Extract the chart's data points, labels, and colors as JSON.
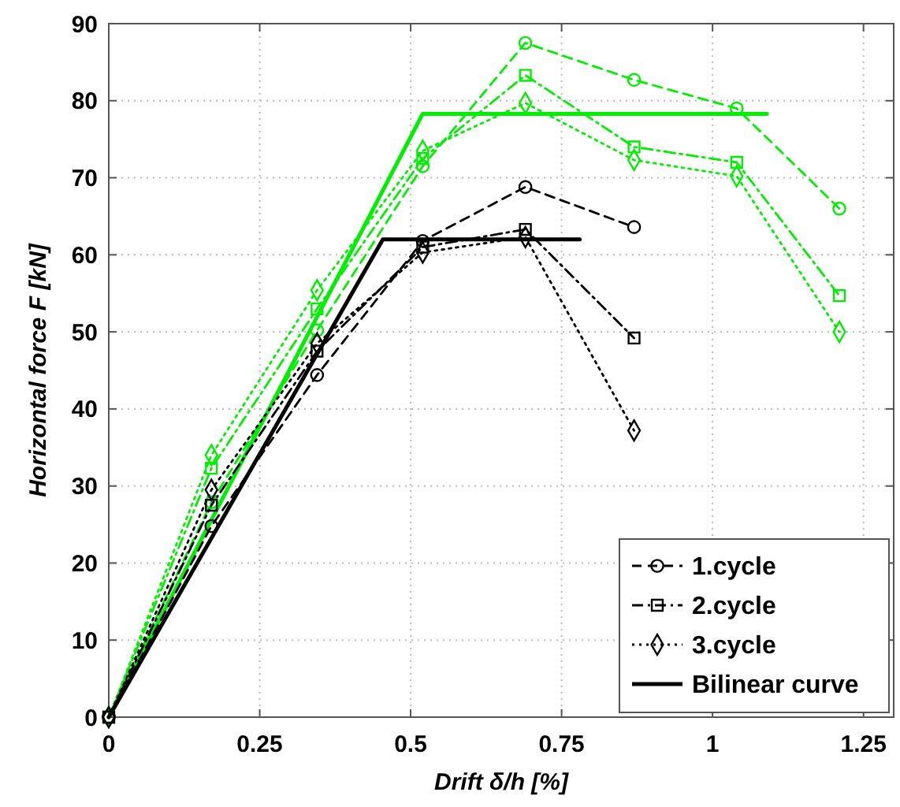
{
  "chart_data": {
    "type": "line",
    "xlabel": "Drift  δ/h [%]",
    "ylabel": "Horizontal force  F [kN]",
    "xlim": [
      0,
      1.3
    ],
    "xticks": [
      0,
      0.25,
      0.5,
      0.75,
      1,
      1.25
    ],
    "ylim": [
      0,
      90
    ],
    "yticks": [
      0,
      10,
      20,
      30,
      40,
      50,
      60,
      70,
      80,
      90
    ],
    "grid": true,
    "legend": "bottom right",
    "series": [
      {
        "color": "#00ee00",
        "marker": "circle",
        "line_style": "dashed",
        "x": [
          0,
          0.17,
          0.345,
          0.52,
          0.69,
          0.87,
          1.04,
          1.21
        ],
        "values": [
          0,
          27.9,
          50.2,
          71.5,
          87.5,
          82.7,
          79,
          66
        ]
      },
      {
        "color": "#00ee00",
        "marker": "square",
        "line_style": "dashdot",
        "x": [
          0,
          0.17,
          0.345,
          0.52,
          0.69,
          0.87,
          1.04,
          1.21
        ],
        "values": [
          0,
          32.3,
          53,
          72.5,
          83.3,
          74,
          72,
          54.7
        ]
      },
      {
        "color": "#00ee00",
        "marker": "diamond",
        "line_style": "dotted",
        "x": [
          0,
          0.17,
          0.345,
          0.52,
          0.69,
          0.87,
          1.04,
          1.21
        ],
        "values": [
          0,
          34,
          55.4,
          73.5,
          79.7,
          72.3,
          70.2,
          50
        ]
      },
      {
        "color": "#00ee00",
        "marker": "none",
        "line_style": "solid",
        "x": [
          0,
          0.52,
          1.09
        ],
        "values": [
          0,
          78.3,
          78.3
        ]
      },
      {
        "name": "1.cycle",
        "color": "#000000",
        "marker": "circle",
        "line_style": "dashed",
        "x": [
          0,
          0.17,
          0.345,
          0.52,
          0.69,
          0.87
        ],
        "values": [
          0,
          24.8,
          44.4,
          61.8,
          68.8,
          63.6
        ]
      },
      {
        "name": "2.cycle",
        "color": "#000000",
        "marker": "square",
        "line_style": "dashdot",
        "x": [
          0,
          0.17,
          0.345,
          0.52,
          0.69,
          0.87
        ],
        "values": [
          0,
          27.5,
          47.5,
          61,
          63.3,
          49.2
        ]
      },
      {
        "name": "3.cycle",
        "color": "#000000",
        "marker": "diamond",
        "line_style": "dotted",
        "x": [
          0,
          0.17,
          0.345,
          0.52,
          0.69,
          0.87
        ],
        "values": [
          0,
          29.5,
          48.5,
          60.3,
          62.3,
          37.2
        ]
      },
      {
        "name": "Bilinear curve",
        "color": "#000000",
        "marker": "none",
        "line_style": "solid",
        "x": [
          0,
          0.454,
          0.78
        ],
        "values": [
          0,
          62,
          62
        ]
      }
    ]
  }
}
